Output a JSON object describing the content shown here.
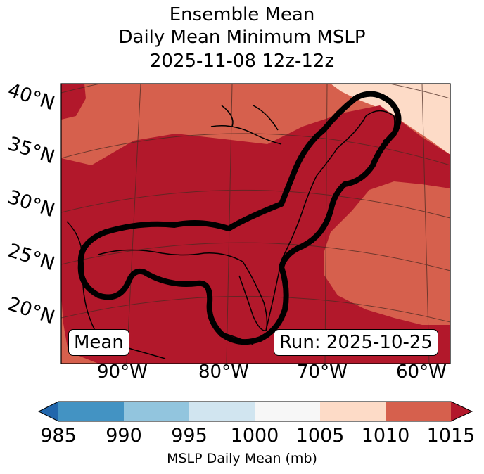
{
  "title": {
    "line1": "Ensemble Mean",
    "line2": "Daily Mean Minimum MSLP",
    "line3": "2025-11-08 12z-12z"
  },
  "map": {
    "lat_labels": [
      "40°N",
      "35°N",
      "30°N",
      "25°N",
      "20°N"
    ],
    "lon_labels": [
      "90°W",
      "80°W",
      "70°W",
      "60°W"
    ],
    "left_box": "Mean",
    "right_box": "Run: 2025-10-25",
    "fill_colors": {
      "band_1005_1010": "#fddbc7",
      "band_1010_1015": "#d6604d",
      "band_above_1015": "#b2182b"
    }
  },
  "colorbar": {
    "ticks": [
      "985",
      "990",
      "995",
      "1000",
      "1005",
      "1010",
      "1015"
    ],
    "label": "MSLP Daily Mean (mb)",
    "colors": [
      "#2166ac",
      "#4393c3",
      "#92c5de",
      "#d1e5f0",
      "#f7f7f7",
      "#fddbc7",
      "#d6604d",
      "#b2182b"
    ]
  }
}
